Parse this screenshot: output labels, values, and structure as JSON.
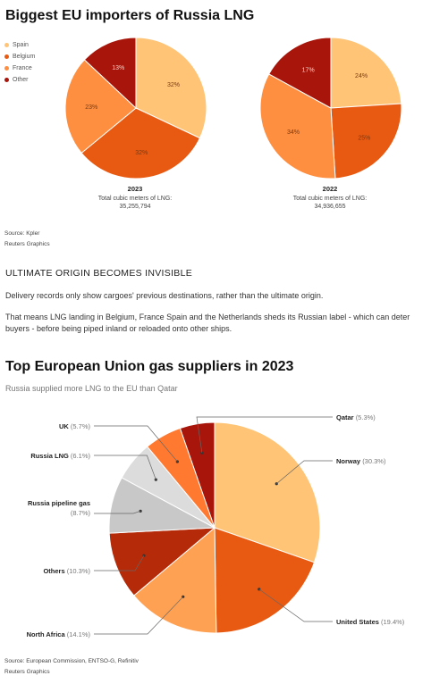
{
  "chart_data": [
    {
      "type": "pie",
      "title": "Biggest EU importers of Russia LNG",
      "legend": [
        "Spain",
        "Belgium",
        "France",
        "Other"
      ],
      "legend_position": "top-left",
      "colors": [
        "#FFC476",
        "#E85A12",
        "#FF8F40",
        "#A8150A"
      ],
      "year": "2023",
      "caption": "Total cubic meters of LNG:",
      "total": "35,255,794",
      "slices": [
        {
          "name": "Spain",
          "value": 32,
          "label": "32%"
        },
        {
          "name": "Belgium",
          "value": 32,
          "label": "32%"
        },
        {
          "name": "France",
          "value": 23,
          "label": "23%"
        },
        {
          "name": "Other",
          "value": 13,
          "label": "13%"
        }
      ]
    },
    {
      "type": "pie",
      "year": "2022",
      "caption": "Total cubic meters of LNG:",
      "total": "34,936,655",
      "slices": [
        {
          "name": "Spain",
          "value": 24,
          "label": "24%"
        },
        {
          "name": "Belgium",
          "value": 25,
          "label": "25%"
        },
        {
          "name": "France",
          "value": 34,
          "label": "34%"
        },
        {
          "name": "Other",
          "value": 17,
          "label": "17%"
        }
      ]
    },
    {
      "type": "pie",
      "title": "Top European Union gas suppliers in 2023",
      "subtitle": "Russia supplied more LNG to the EU than Qatar",
      "slices": [
        {
          "name": "Norway",
          "value": 30.3,
          "pct": "(30.3%)",
          "color": "#FFC476"
        },
        {
          "name": "United States",
          "value": 19.4,
          "pct": "(19.4%)",
          "color": "#E85A12"
        },
        {
          "name": "North Africa",
          "value": 14.1,
          "pct": "(14.1%)",
          "color": "#FFA152"
        },
        {
          "name": "Others",
          "value": 10.3,
          "pct": "(10.3%)",
          "color": "#B52A08"
        },
        {
          "name": "Russia pipeline gas",
          "value": 8.7,
          "pct": "(8.7%)",
          "color": "#C8C8C8"
        },
        {
          "name": "Russia LNG",
          "value": 6.1,
          "pct": "(6.1%)",
          "color": "#DCDCDC"
        },
        {
          "name": "UK",
          "value": 5.7,
          "pct": "(5.7%)",
          "color": "#FF7A30"
        },
        {
          "name": "Qatar",
          "value": 5.3,
          "pct": "(5.3%)",
          "color": "#A8150A"
        }
      ]
    }
  ],
  "source1": "Source: Kpler",
  "credit1": "Reuters Graphics",
  "section_heading": "ULTIMATE ORIGIN BECOMES INVISIBLE",
  "para1": "Delivery records only show cargoes' previous destinations, rather than the ultimate origin.",
  "para2": "That means LNG landing in Belgium, France Spain and the Netherlands sheds its Russian label - which can deter buyers - before being piped inland or reloaded onto other ships.",
  "source2": "Source: European Commission, ENTSO-G, Refinitiv",
  "credit2": "Reuters Graphics"
}
